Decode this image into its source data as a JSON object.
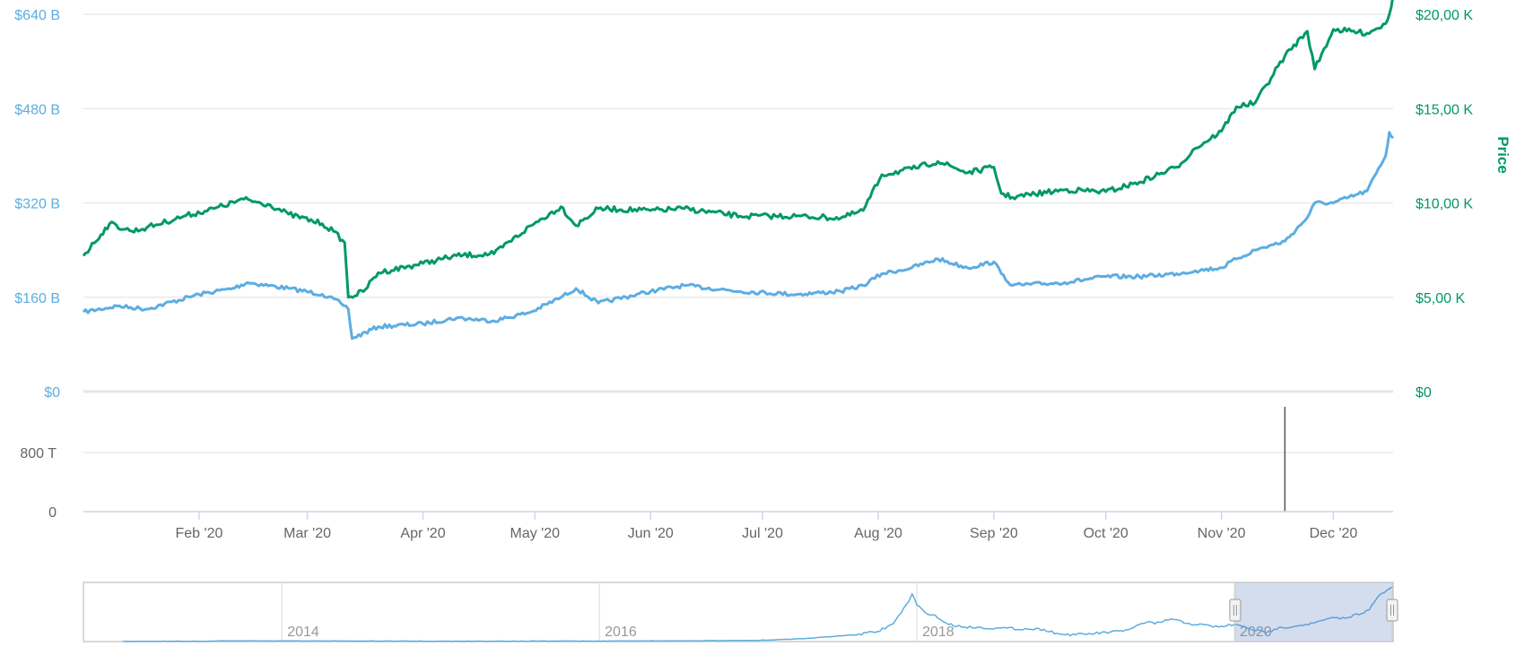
{
  "chart_data": [
    {
      "type": "line",
      "title": "",
      "x_range": [
        "2020-01-01",
        "2020-12-17"
      ],
      "grid": true,
      "legend": "none",
      "axes": {
        "left": {
          "ticks": [
            "$0",
            "$160 B",
            "$320 B",
            "$480 B",
            "$640 B"
          ],
          "values": [
            0,
            160,
            320,
            480,
            640
          ],
          "unit": "B USD",
          "color": "#5DADE2"
        },
        "right": {
          "title": "Price",
          "ticks": [
            "$0",
            "$5,00 K",
            "$10,00 K",
            "$15,00 K",
            "$20,00 K"
          ],
          "values": [
            0,
            5000,
            10000,
            15000,
            20000
          ],
          "unit": "USD",
          "color": "#009966"
        }
      },
      "series": [
        {
          "axis": "left",
          "color": "#5DADE2",
          "x": [
            "2020-01-01",
            "2020-01-10",
            "2020-01-18",
            "2020-02-01",
            "2020-02-10",
            "2020-02-14",
            "2020-02-25",
            "2020-03-05",
            "2020-03-10",
            "2020-03-12",
            "2020-03-13",
            "2020-03-20",
            "2020-04-01",
            "2020-04-10",
            "2020-04-20",
            "2020-04-30",
            "2020-05-08",
            "2020-05-12",
            "2020-05-18",
            "2020-06-01",
            "2020-06-10",
            "2020-06-25",
            "2020-07-10",
            "2020-07-22",
            "2020-07-28",
            "2020-08-02",
            "2020-08-10",
            "2020-08-17",
            "2020-08-25",
            "2020-09-01",
            "2020-09-03",
            "2020-09-06",
            "2020-09-20",
            "2020-10-01",
            "2020-10-10",
            "2020-10-20",
            "2020-10-25",
            "2020-11-01",
            "2020-11-05",
            "2020-11-10",
            "2020-11-18",
            "2020-11-24",
            "2020-11-26",
            "2020-12-01",
            "2020-12-10",
            "2020-12-15",
            "2020-12-16",
            "2020-12-17"
          ],
          "values": [
            135,
            145,
            140,
            165,
            175,
            185,
            175,
            165,
            150,
            140,
            90,
            110,
            115,
            125,
            120,
            135,
            160,
            175,
            150,
            170,
            180,
            170,
            165,
            170,
            180,
            200,
            210,
            225,
            210,
            220,
            200,
            180,
            185,
            195,
            195,
            200,
            205,
            210,
            225,
            240,
            255,
            295,
            320,
            320,
            340,
            400,
            440,
            430
          ]
        },
        {
          "axis": "right",
          "color": "#009966",
          "x": [
            "2020-01-01",
            "2020-01-08",
            "2020-01-14",
            "2020-01-18",
            "2020-01-28",
            "2020-02-05",
            "2020-02-13",
            "2020-02-20",
            "2020-02-25",
            "2020-03-05",
            "2020-03-08",
            "2020-03-11",
            "2020-03-12",
            "2020-03-16",
            "2020-03-20",
            "2020-04-01",
            "2020-04-10",
            "2020-04-20",
            "2020-04-30",
            "2020-05-08",
            "2020-05-12",
            "2020-05-18",
            "2020-06-01",
            "2020-06-10",
            "2020-06-25",
            "2020-07-10",
            "2020-07-22",
            "2020-07-28",
            "2020-08-02",
            "2020-08-10",
            "2020-08-17",
            "2020-08-25",
            "2020-09-01",
            "2020-09-03",
            "2020-09-06",
            "2020-09-20",
            "2020-10-01",
            "2020-10-10",
            "2020-10-20",
            "2020-10-25",
            "2020-11-01",
            "2020-11-05",
            "2020-11-10",
            "2020-11-18",
            "2020-11-24",
            "2020-11-26",
            "2020-12-01",
            "2020-12-10",
            "2020-12-15",
            "2020-12-16",
            "2020-12-17"
          ],
          "values": [
            7200,
            8900,
            8500,
            8700,
            9300,
            9700,
            10200,
            9900,
            9400,
            8900,
            8500,
            7900,
            5000,
            5300,
            6300,
            6800,
            7200,
            7300,
            8800,
            9800,
            8800,
            9700,
            9600,
            9700,
            9300,
            9300,
            9200,
            9600,
            11500,
            11800,
            12200,
            11600,
            11900,
            10500,
            10300,
            10700,
            10600,
            11100,
            11900,
            12900,
            13800,
            15100,
            15300,
            17800,
            19100,
            17100,
            19200,
            19000,
            19500,
            20000,
            21000
          ]
        }
      ]
    },
    {
      "type": "bar",
      "title": "",
      "axes": {
        "left": {
          "ticks": [
            "0",
            "800 T"
          ],
          "values": [
            0,
            800
          ]
        }
      },
      "x_ticks": [
        "Feb '20",
        "Mar '20",
        "Apr '20",
        "May '20",
        "Jun '20",
        "Jul '20",
        "Aug '20",
        "Sep '20",
        "Oct '20",
        "Nov '20",
        "Dec '20"
      ],
      "spikes": [
        {
          "x": "2020-11-18",
          "value": 1700
        }
      ]
    },
    {
      "type": "area",
      "title": "",
      "navigator": true,
      "x_ticks": [
        "2014",
        "2016",
        "2018",
        "2020"
      ],
      "selection": [
        "2020-01-01",
        "2020-12-17"
      ],
      "series": [
        {
          "color": "#5DADE2",
          "x": [
            2013.0,
            2013.5,
            2013.6,
            2014.0,
            2015.0,
            2016.0,
            2016.5,
            2017.0,
            2017.3,
            2017.6,
            2017.75,
            2017.85,
            2017.95,
            2017.97,
            2018.0,
            2018.05,
            2018.1,
            2018.2,
            2018.3,
            2018.5,
            2018.8,
            2018.9,
            2019.0,
            2019.3,
            2019.45,
            2019.5,
            2019.6,
            2019.7,
            2019.9,
            2020.0,
            2020.2,
            2020.25,
            2020.3,
            2020.5,
            2020.6,
            2020.7,
            2020.85,
            2020.9,
            2020.96,
            2021.0
          ],
          "values": [
            2,
            2,
            6,
            5,
            3,
            4,
            6,
            9,
            25,
            55,
            80,
            145,
            330,
            390,
            300,
            240,
            220,
            140,
            120,
            110,
            100,
            60,
            55,
            85,
            160,
            145,
            185,
            150,
            120,
            140,
            70,
            100,
            115,
            150,
            190,
            190,
            260,
            360,
            420,
            450
          ]
        }
      ]
    }
  ]
}
